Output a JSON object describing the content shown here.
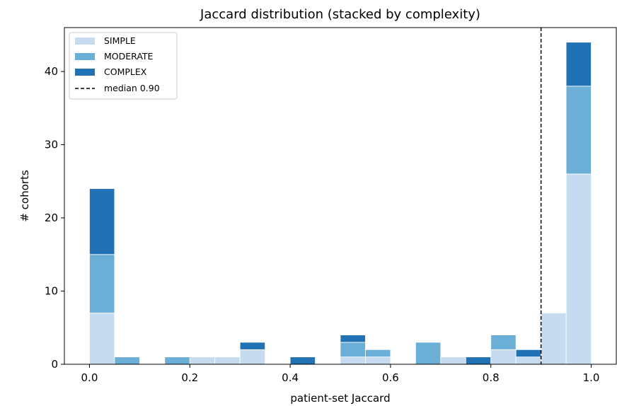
{
  "chart_data": {
    "type": "bar",
    "stacked": true,
    "title": "Jaccard distribution (stacked by complexity)",
    "xlabel": "patient-set Jaccard",
    "ylabel": "# cohorts",
    "xlim": [
      -0.05,
      1.05
    ],
    "ylim": [
      0,
      46
    ],
    "xticks": [
      0.0,
      0.2,
      0.4,
      0.6,
      0.8,
      1.0
    ],
    "xtick_labels": [
      "0.0",
      "0.2",
      "0.4",
      "0.6",
      "0.8",
      "1.0"
    ],
    "yticks": [
      0,
      10,
      20,
      30,
      40
    ],
    "ytick_labels": [
      "0",
      "10",
      "20",
      "30",
      "40"
    ],
    "bin_edges": [
      0.0,
      0.05,
      0.1,
      0.15,
      0.2,
      0.25,
      0.3,
      0.35,
      0.4,
      0.45,
      0.5,
      0.55,
      0.6,
      0.65,
      0.7,
      0.75,
      0.8,
      0.85,
      0.9,
      0.95,
      1.0
    ],
    "series": [
      {
        "name": "SIMPLE",
        "color": "#c6dbef",
        "values": [
          7,
          0,
          0,
          0,
          1,
          1,
          2,
          0,
          0,
          0,
          1,
          1,
          0,
          0,
          1,
          0,
          2,
          1,
          7,
          26
        ]
      },
      {
        "name": "MODERATE",
        "color": "#6baed6",
        "values": [
          8,
          1,
          0,
          1,
          0,
          0,
          0,
          0,
          0,
          0,
          2,
          1,
          0,
          3,
          0,
          0,
          2,
          0,
          0,
          12
        ]
      },
      {
        "name": "COMPLEX",
        "color": "#2171b5",
        "values": [
          9,
          0,
          0,
          0,
          0,
          0,
          1,
          0,
          1,
          0,
          1,
          0,
          0,
          0,
          0,
          1,
          0,
          1,
          0,
          6
        ]
      }
    ],
    "median_line": {
      "value": 0.9,
      "label": "median 0.90",
      "color": "#000000",
      "style": "dashed"
    },
    "legend": {
      "placement": "top-left"
    },
    "grid": false
  }
}
